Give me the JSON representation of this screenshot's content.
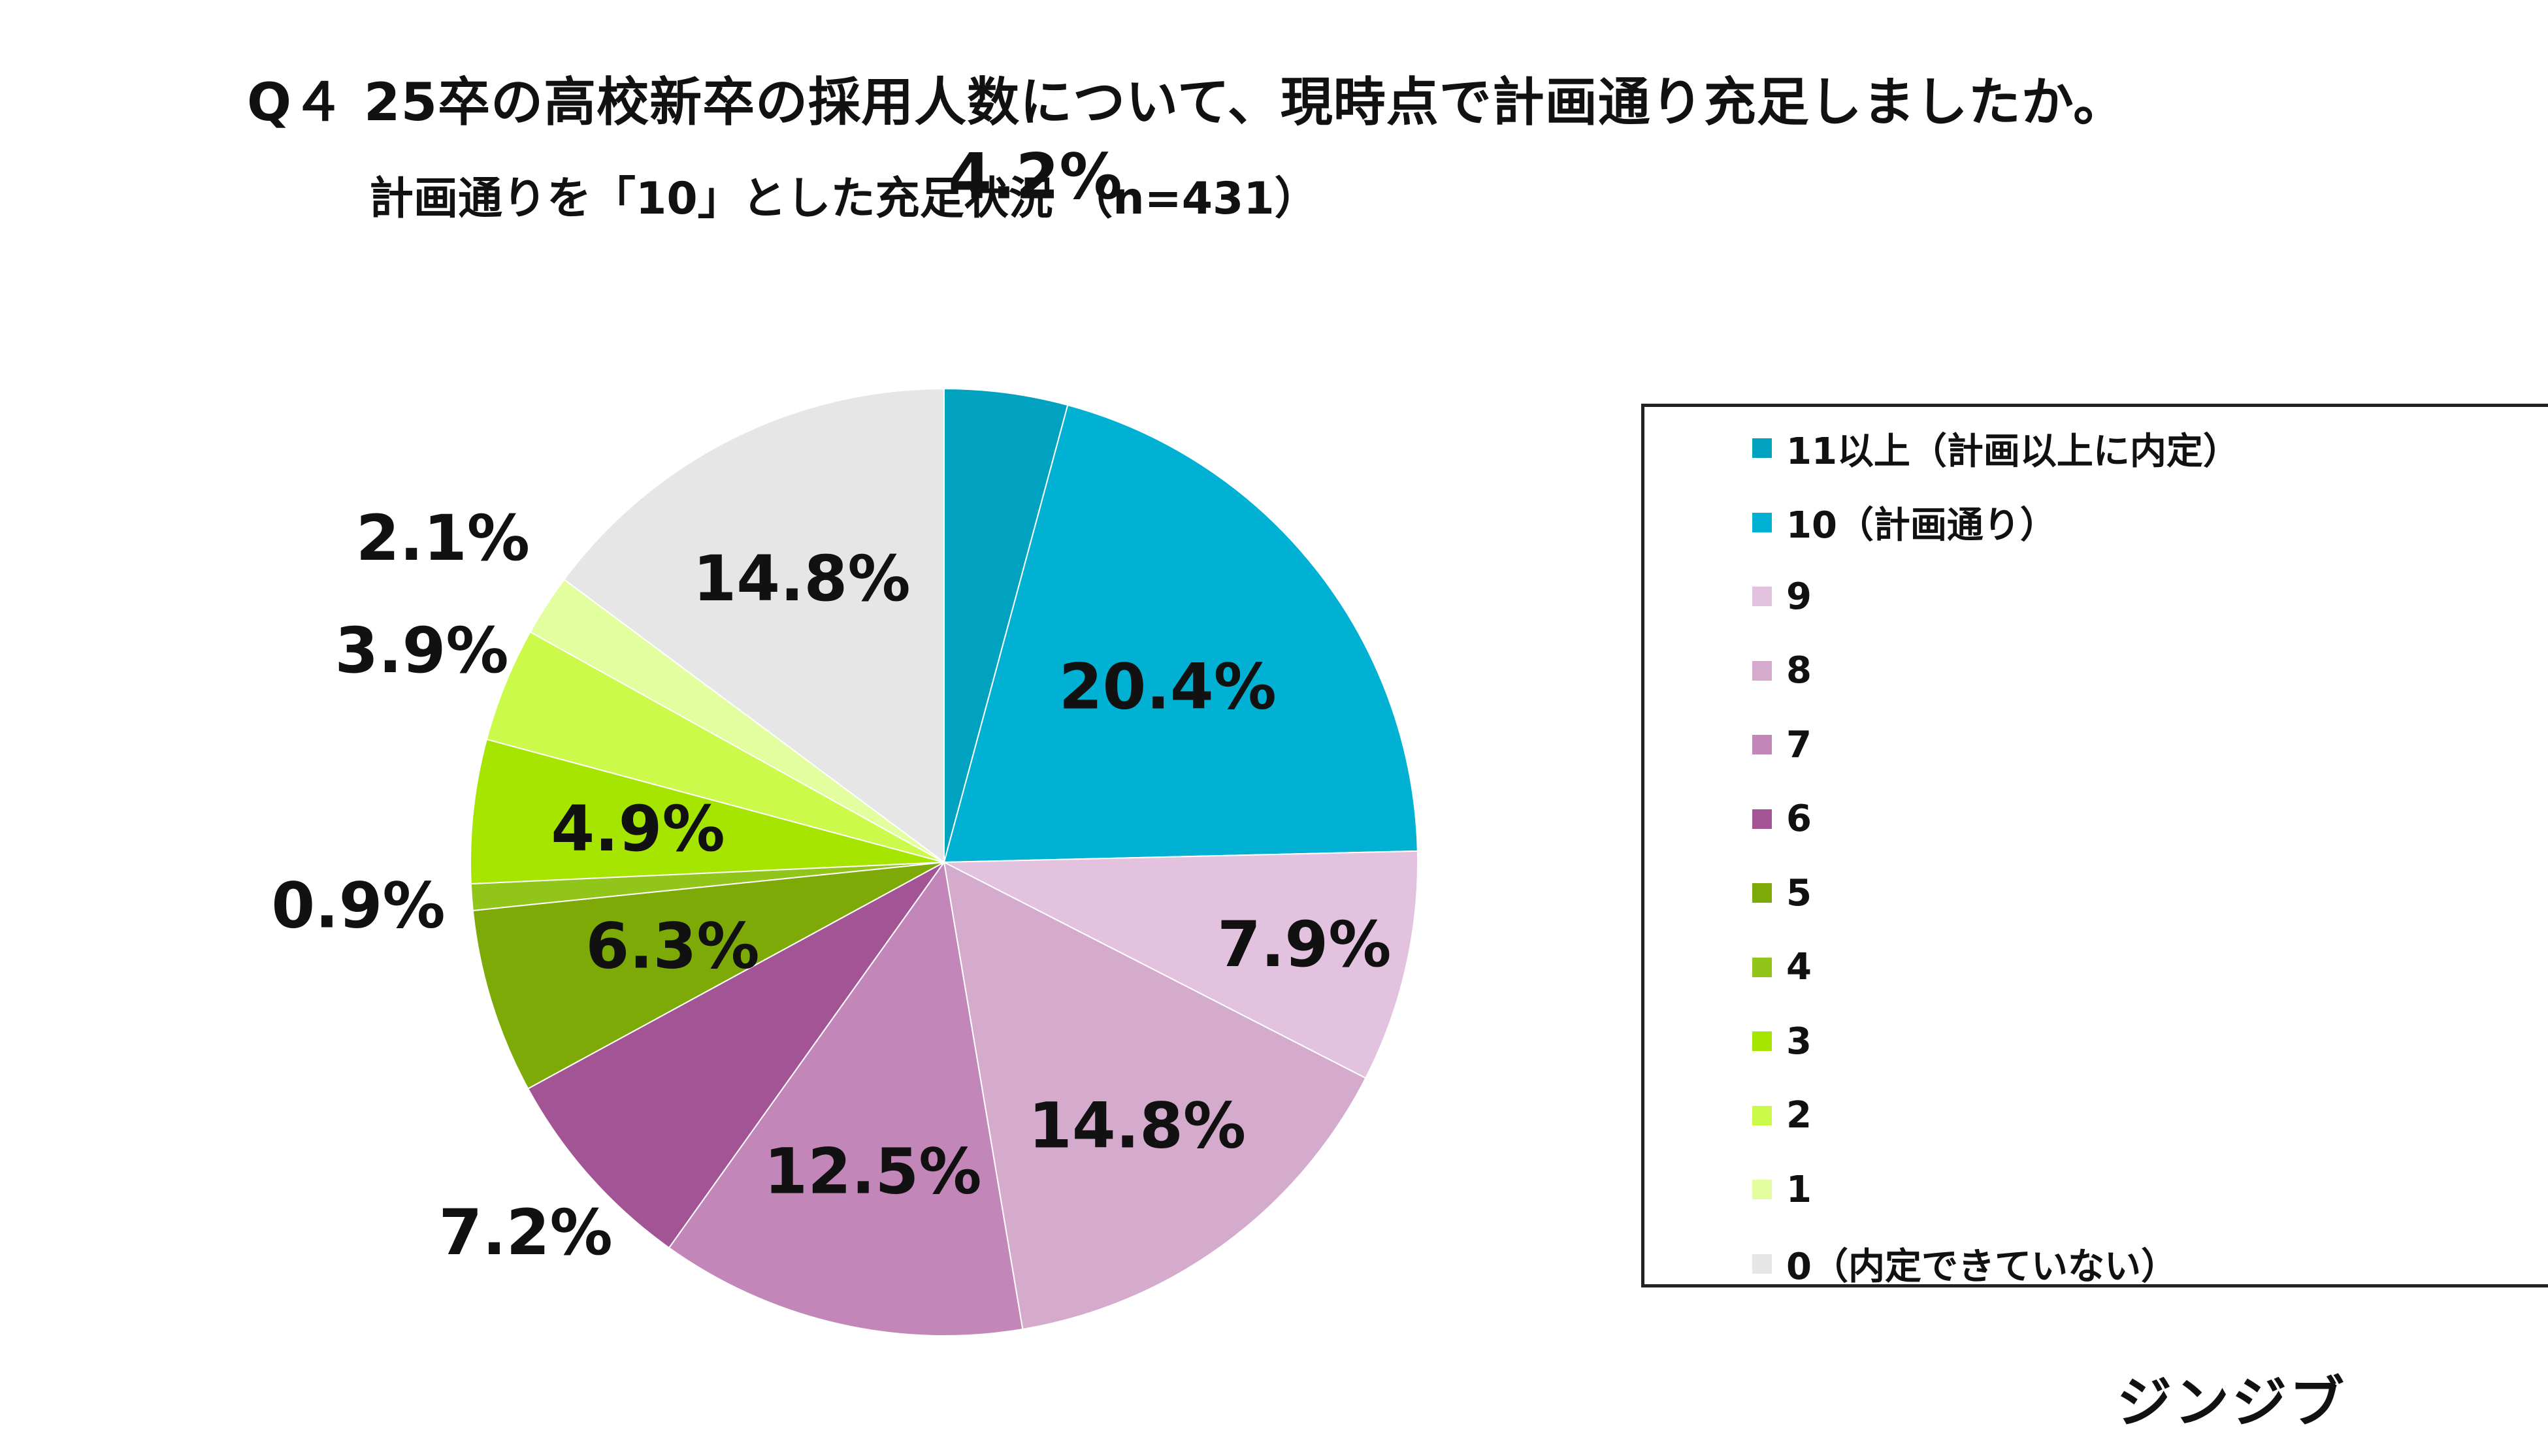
{
  "header": {
    "title": "Q４ 25卒の高校新卒の採用人数について、現時点で計画通り充足しましたか。",
    "subtitle": "計画通りを「10」とした充足状況 （n=431）"
  },
  "brand": "ジンジブ",
  "chart_data": {
    "type": "pie",
    "categories": [
      "11以上（計画以上に内定）",
      "10（計画通り）",
      "9",
      "8",
      "7",
      "6",
      "5",
      "4",
      "3",
      "2",
      "1",
      "0（内定できていない）"
    ],
    "values": [
      4.2,
      20.4,
      7.9,
      14.8,
      12.5,
      7.2,
      6.3,
      0.9,
      4.9,
      3.9,
      2.1,
      14.8
    ],
    "labels": [
      "4.2%",
      "20.4%",
      "7.9%",
      "14.8%",
      "12.5%",
      "7.2%",
      "6.3%",
      "0.9%",
      "4.9%",
      "3.9%",
      "2.1%",
      "14.8%"
    ],
    "colors": [
      "#00a2bf",
      "#00b1d3",
      "#e2c2de",
      "#d5abcd",
      "#c286b8",
      "#a35494",
      "#7daa06",
      "#92c51a",
      "#a6e500",
      "#ccfa4a",
      "#e2fe9e",
      "#e6e6e6"
    ],
    "legend_position": "right",
    "start_angle_deg": 0,
    "direction": "clockwise"
  }
}
